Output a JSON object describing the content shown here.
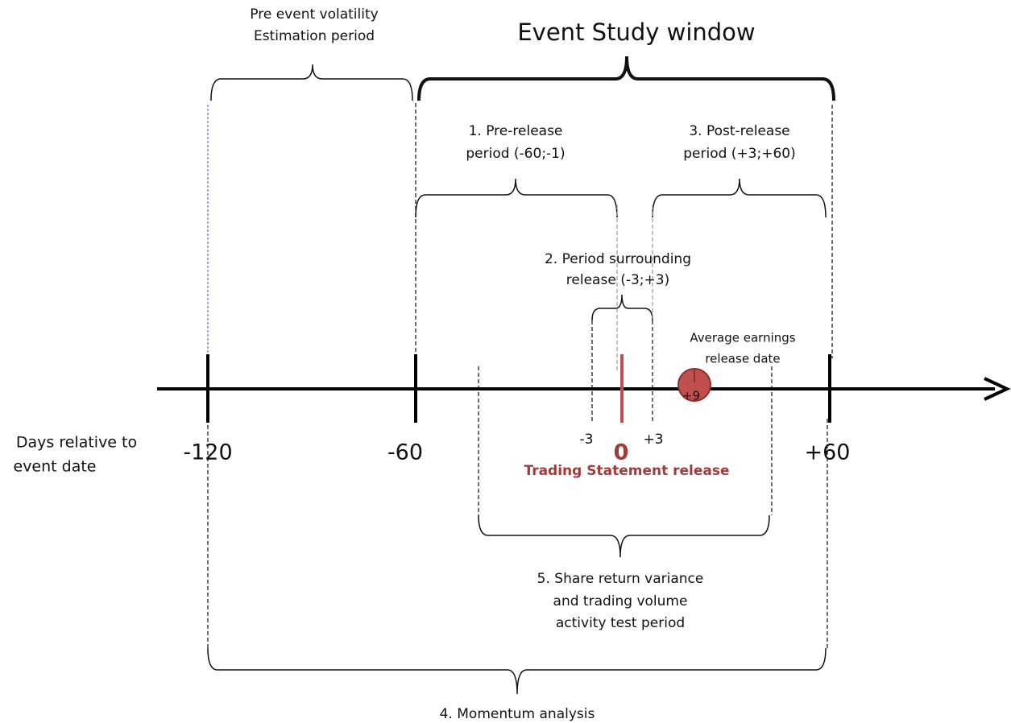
{
  "header": {
    "estimation": [
      "Pre event volatility",
      "Estimation period"
    ],
    "event_window": "Event Study window"
  },
  "periods": {
    "pre_release": [
      "1. Pre-release",
      "period (-60;-1)"
    ],
    "post_release": [
      "3. Post-release",
      "period (+3;+60)"
    ],
    "surrounding": [
      "2. Period surrounding",
      "release (-3;+3)"
    ],
    "variance": [
      "5. Share return variance",
      "and trading volume",
      "activity test period"
    ],
    "momentum": "4. Momentum analysis"
  },
  "average_release": [
    "Average earnings",
    "release date"
  ],
  "average_offset": "+9",
  "axis": {
    "title": [
      "Days relative to",
      "event date"
    ],
    "ticks": [
      "-120",
      "-60",
      "-3",
      "0",
      "+3",
      "+60"
    ],
    "event_label": "Trading Statement release"
  }
}
